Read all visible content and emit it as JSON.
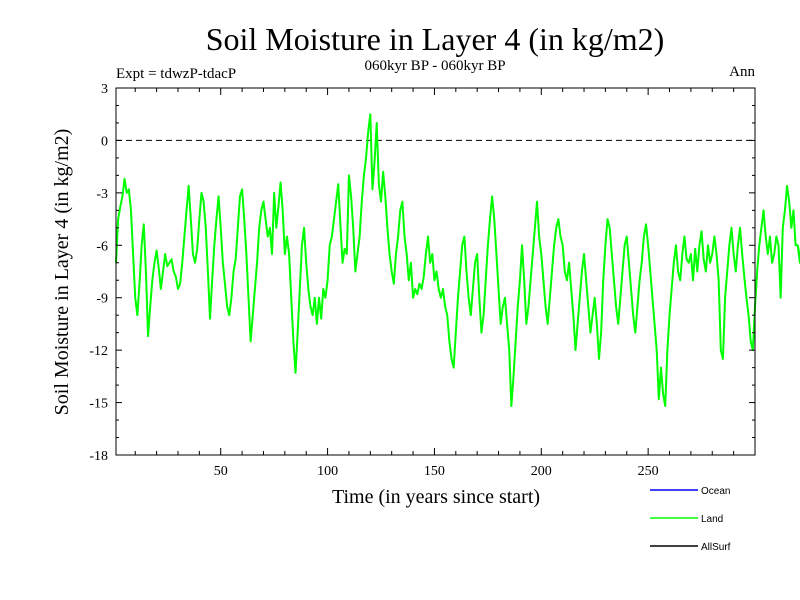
{
  "chart_data": {
    "type": "line",
    "title": "Soil Moisture in Layer 4 (in kg/m2)",
    "subtitle": "060kyr BP - 060kyr BP",
    "experiment": "Expt = tdwzP-tdacP",
    "period": "Ann",
    "xlabel": "Time (in years since start)",
    "ylabel": "Soil Moisture in Layer 4 (in kg/m2)",
    "xlim": [
      1,
      300
    ],
    "ylim": [
      -18,
      3
    ],
    "xticks": [
      50,
      100,
      150,
      200,
      250
    ],
    "xtick_labels": [
      "50",
      "100",
      "150",
      "200",
      "250"
    ],
    "yticks": [
      3,
      0,
      -3,
      -6,
      -9,
      -12,
      -15,
      -18
    ],
    "ytick_labels": [
      "3",
      "0",
      "-3",
      "-6",
      "-9",
      "-12",
      "-15",
      "-18"
    ],
    "reference_line": 0,
    "legend": [
      {
        "label": "Ocean",
        "color": "#0000ff"
      },
      {
        "label": "Land",
        "color": "#00ff00"
      },
      {
        "label": "AllSurf",
        "color": "#000000"
      }
    ],
    "series": [
      {
        "name": "Land",
        "color": "#00ff00",
        "x_start": 1,
        "x_step": 1,
        "values": [
          -7.0,
          -4.5,
          -3.8,
          -3.2,
          -2.2,
          -3.0,
          -2.8,
          -4.0,
          -6.5,
          -9.0,
          -10.0,
          -8.2,
          -6.0,
          -4.8,
          -7.5,
          -11.2,
          -9.5,
          -8.0,
          -7.0,
          -6.3,
          -7.3,
          -8.5,
          -7.5,
          -6.5,
          -7.2,
          -7.0,
          -6.8,
          -7.5,
          -7.8,
          -8.5,
          -8.2,
          -7.0,
          -5.5,
          -4.0,
          -2.6,
          -4.5,
          -6.5,
          -7.0,
          -6.2,
          -4.5,
          -3.0,
          -3.5,
          -5.0,
          -7.5,
          -10.2,
          -8.0,
          -6.0,
          -4.5,
          -3.2,
          -5.0,
          -7.0,
          -8.2,
          -9.5,
          -10.0,
          -9.0,
          -7.5,
          -6.8,
          -5.0,
          -3.2,
          -2.8,
          -4.5,
          -6.5,
          -9.0,
          -11.5,
          -10.0,
          -8.5,
          -7.0,
          -5.0,
          -4.0,
          -3.5,
          -4.5,
          -5.5,
          -5.0,
          -6.5,
          -3.0,
          -5.0,
          -3.8,
          -2.4,
          -4.0,
          -6.5,
          -5.5,
          -6.5,
          -9.0,
          -11.5,
          -13.3,
          -11.0,
          -8.5,
          -6.0,
          -5.0,
          -7.0,
          -8.5,
          -9.5,
          -10.0,
          -9.0,
          -10.5,
          -9.0,
          -10.2,
          -8.5,
          -9.0,
          -8.0,
          -6.0,
          -5.5,
          -4.5,
          -3.5,
          -2.5,
          -4.8,
          -7.0,
          -6.2,
          -6.5,
          -2.0,
          -3.2,
          -5.0,
          -7.5,
          -6.5,
          -5.5,
          -3.5,
          -2.0,
          -1.0,
          0.5,
          1.5,
          -2.8,
          -1.2,
          1.0,
          -2.5,
          -3.5,
          -1.8,
          -3.2,
          -5.0,
          -6.5,
          -7.5,
          -8.2,
          -6.5,
          -5.5,
          -4.0,
          -3.5,
          -5.5,
          -6.5,
          -8.0,
          -7.0,
          -9.0,
          -8.5,
          -8.8,
          -8.2,
          -8.5,
          -7.8,
          -6.5,
          -5.5,
          -7.0,
          -6.5,
          -8.0,
          -7.5,
          -8.5,
          -9.0,
          -8.5,
          -9.5,
          -10.0,
          -11.5,
          -12.5,
          -13.0,
          -11.0,
          -9.0,
          -7.5,
          -6.0,
          -5.5,
          -7.5,
          -9.0,
          -10.0,
          -8.5,
          -7.0,
          -6.5,
          -9.0,
          -11.0,
          -10.0,
          -8.0,
          -6.0,
          -4.5,
          -3.2,
          -4.5,
          -6.5,
          -8.5,
          -10.5,
          -9.5,
          -9.0,
          -10.5,
          -12.0,
          -15.2,
          -13.5,
          -11.5,
          -9.5,
          -8.0,
          -6.0,
          -8.0,
          -10.5,
          -9.5,
          -8.0,
          -6.5,
          -5.0,
          -3.5,
          -5.5,
          -6.5,
          -8.0,
          -9.5,
          -10.5,
          -9.0,
          -7.5,
          -6.0,
          -5.0,
          -4.5,
          -5.5,
          -6.0,
          -7.5,
          -8.0,
          -7.0,
          -8.5,
          -10.0,
          -12.0,
          -10.5,
          -9.0,
          -7.5,
          -6.5,
          -8.0,
          -9.5,
          -11.0,
          -10.0,
          -9.0,
          -10.5,
          -12.5,
          -11.0,
          -8.0,
          -6.0,
          -4.5,
          -5.0,
          -6.5,
          -8.0,
          -9.5,
          -10.5,
          -9.0,
          -7.5,
          -6.0,
          -5.5,
          -7.0,
          -8.5,
          -10.0,
          -11.0,
          -9.5,
          -8.0,
          -7.0,
          -5.5,
          -4.8,
          -6.0,
          -7.5,
          -9.0,
          -10.5,
          -12.0,
          -14.8,
          -13.0,
          -14.5,
          -15.2,
          -12.0,
          -10.0,
          -8.5,
          -7.0,
          -6.0,
          -7.5,
          -8.0,
          -6.5,
          -5.5,
          -6.8,
          -7.0,
          -6.5,
          -8.0,
          -6.2,
          -7.5,
          -6.0,
          -5.2,
          -6.8,
          -7.5,
          -6.0,
          -7.0,
          -6.5,
          -5.5,
          -6.5,
          -8.0,
          -12.0,
          -12.5,
          -9.0,
          -7.5,
          -6.0,
          -5.0,
          -6.5,
          -7.5,
          -6.0,
          -5.0,
          -6.5,
          -7.8,
          -9.0,
          -10.0,
          -11.5,
          -12.0,
          -9.5,
          -7.5,
          -6.0,
          -5.0,
          -4.0,
          -5.5,
          -6.5,
          -5.5,
          -7.0,
          -6.5,
          -5.5,
          -6.0,
          -9.0,
          -5.0,
          -4.0,
          -2.6,
          -3.5,
          -5.0,
          -4.0,
          -6.0,
          -6.0,
          -7.0,
          -5.0,
          -4.5
        ]
      }
    ]
  }
}
